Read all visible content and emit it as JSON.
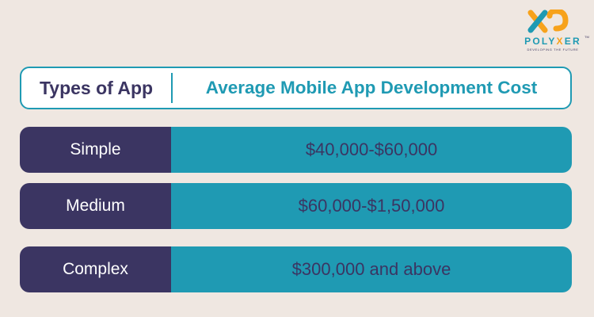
{
  "logo": {
    "name_prefix": "POLY",
    "name_x": "X",
    "name_suffix": "ER",
    "trademark": "TM",
    "tagline": "DEVELOPING THE FUTURE",
    "colors": {
      "orange": "#f7a21b",
      "teal": "#1f9ab3"
    }
  },
  "table": {
    "header": {
      "type_label": "Types of App",
      "cost_label": "Average Mobile App Development Cost"
    },
    "rows": [
      {
        "type": "Simple",
        "cost": "$40,000-$60,000"
      },
      {
        "type": "Medium",
        "cost": "$60,000-$1,50,000"
      },
      {
        "type": "Complex",
        "cost": "$300,000 and above"
      }
    ]
  },
  "colors": {
    "background": "#efe7e1",
    "accent": "#1f9ab3",
    "dark": "#3b3562",
    "white": "#ffffff"
  }
}
